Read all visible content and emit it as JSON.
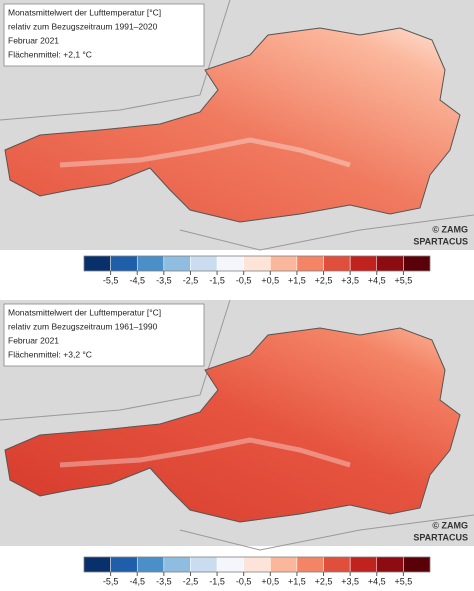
{
  "panels": [
    {
      "info": [
        "Monatsmittelwert der Lufttemperatur [°C]",
        "relativ zum Bezugszeitraum 1991–2020",
        "Februar 2021",
        "Flächenmittel: +2,1 °C"
      ],
      "credits": [
        "© ZAMG",
        "SPARTACUS"
      ]
    },
    {
      "info": [
        "Monatsmittelwert der Lufttemperatur [°C]",
        "relativ zum Bezugszeitraum 1961–1990",
        "Februar 2021",
        "Flächenmittel: +3,2 °C"
      ],
      "credits": [
        "© ZAMG",
        "SPARTACUS"
      ]
    }
  ],
  "legend": {
    "labels": [
      "-5,5",
      "-4,5",
      "-3,5",
      "-2,5",
      "-1,5",
      "-0,5",
      "+0,5",
      "+1,5",
      "+2,5",
      "+3,5",
      "+4,5",
      "+5,5"
    ],
    "colors": [
      "#08306b",
      "#1f5ea8",
      "#4a8fc8",
      "#8fbde0",
      "#c9dcf0",
      "#f4f6fb",
      "#fde4d8",
      "#fbb79c",
      "#f48466",
      "#e04f3b",
      "#c0221f",
      "#8c0c12",
      "#5a0008"
    ]
  }
}
